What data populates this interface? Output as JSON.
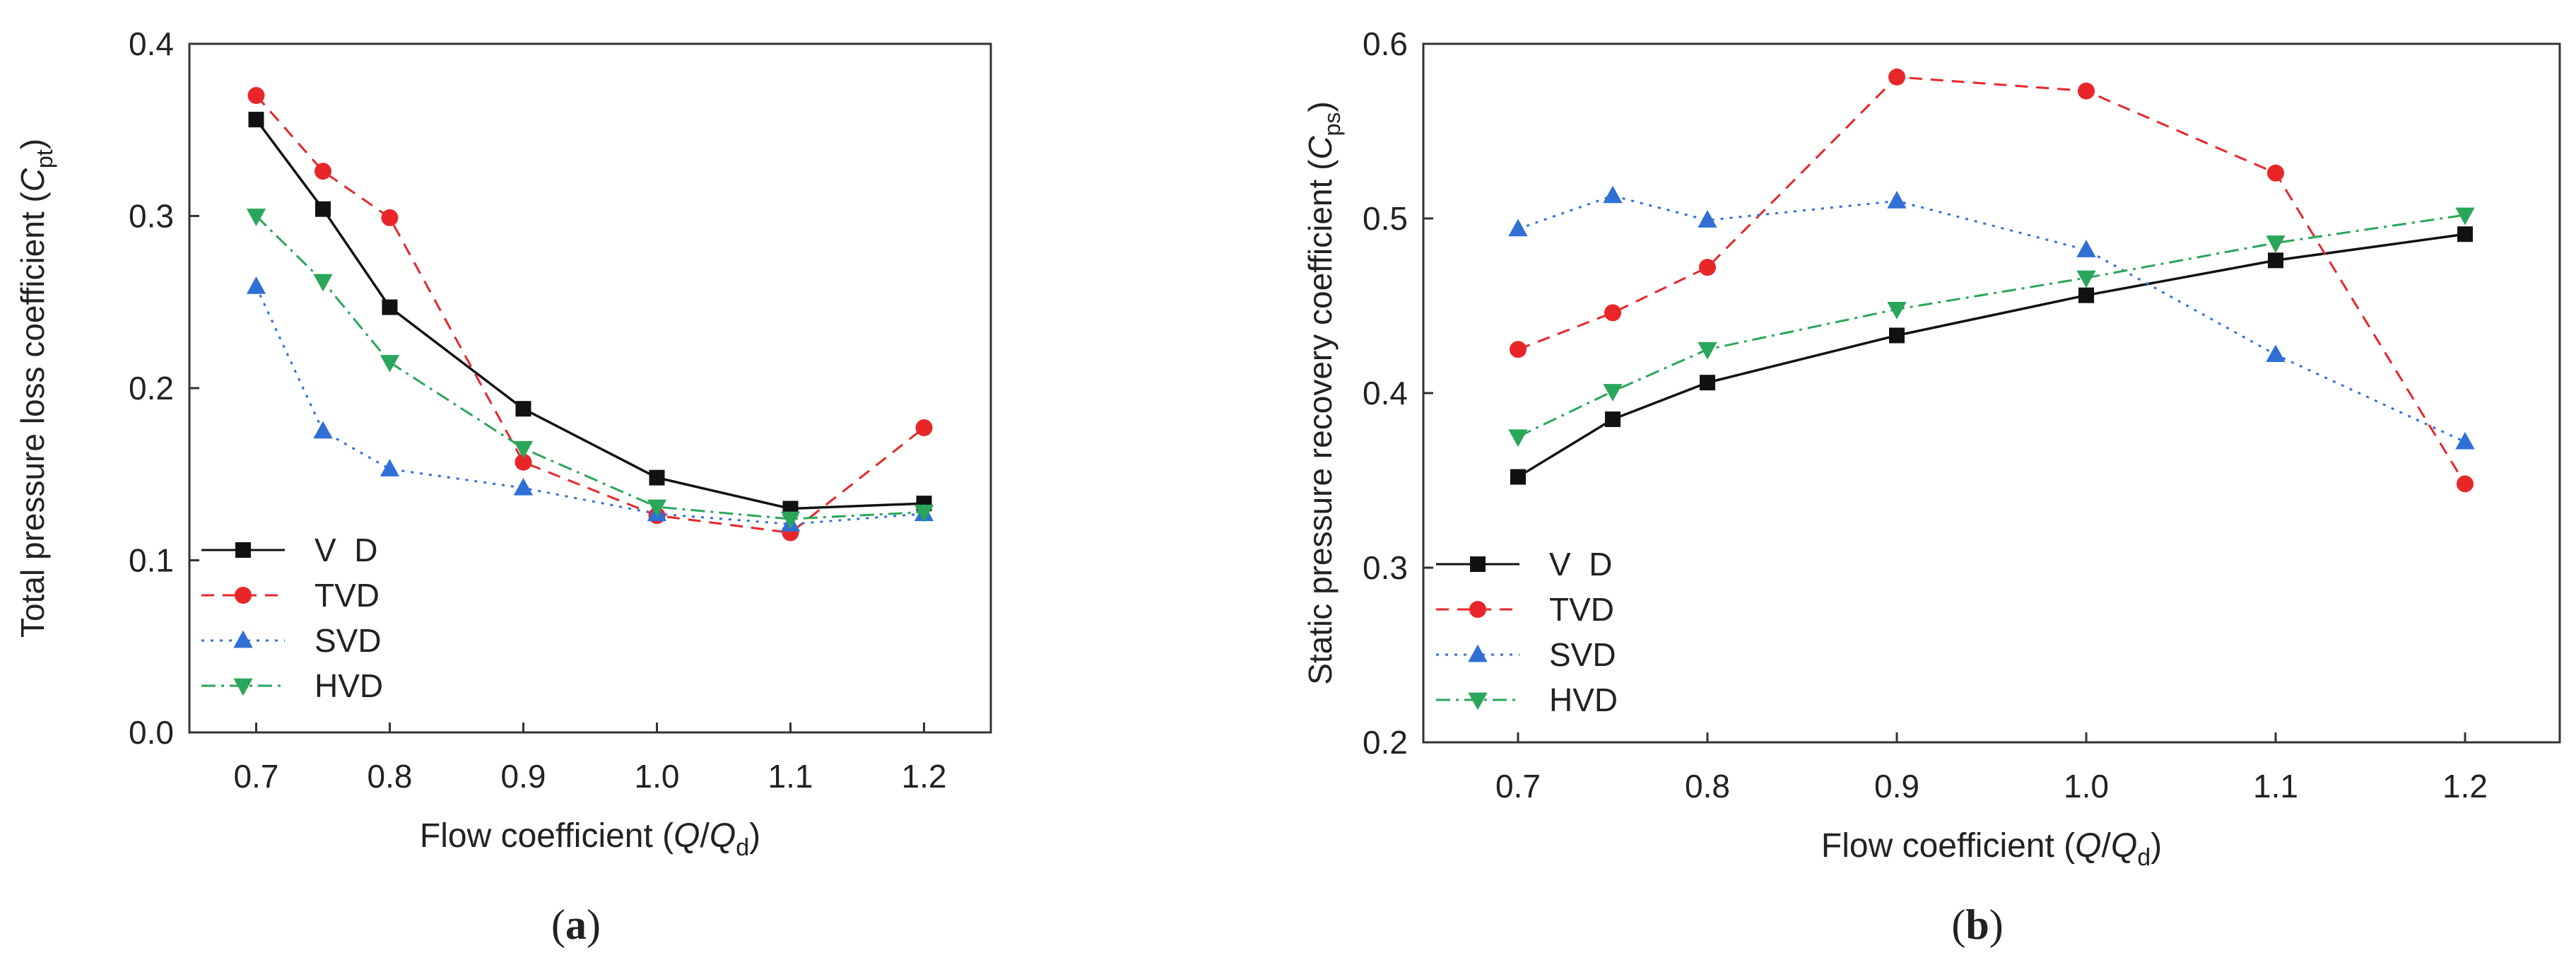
{
  "chart_data": [
    {
      "type": "line",
      "panel_label": "a",
      "ylabel": "Total pressure loss coefficient (",
      "ylabel_symbol": "C",
      "ylabel_sub": "pt",
      "ylabel_close": ")",
      "xlabel": "Flow coefficient (",
      "xlabel_sym1": "Q",
      "xlabel_slash": "/",
      "xlabel_sym2": "Q",
      "xlabel_sub": "d",
      "xlabel_close": ")",
      "xlim": [
        0.65,
        1.25
      ],
      "ylim": [
        0.0,
        0.4
      ],
      "xticks": [
        "0.7",
        "0.8",
        "0.9",
        "1.0",
        "1.1",
        "1.2"
      ],
      "yticks": [
        "0.0",
        "0.1",
        "0.2",
        "0.3",
        "0.4"
      ],
      "grid": false,
      "legend_position": "bottom-left",
      "series": [
        {
          "name": "V  D",
          "color": "#111111",
          "marker": "square",
          "dash": "solid",
          "x": [
            0.7,
            0.75,
            0.8,
            0.9,
            1.0,
            1.1,
            1.2
          ],
          "y": [
            0.356,
            0.304,
            0.247,
            0.188,
            0.148,
            0.13,
            0.133
          ]
        },
        {
          "name": "TVD",
          "color": "#e8262a",
          "marker": "circle",
          "dash": "dashed",
          "x": [
            0.7,
            0.75,
            0.8,
            0.9,
            1.0,
            1.1,
            1.2
          ],
          "y": [
            0.37,
            0.326,
            0.299,
            0.157,
            0.126,
            0.116,
            0.177
          ]
        },
        {
          "name": "SVD",
          "color": "#2f6fd6",
          "marker": "triangle-up",
          "dash": "dotted",
          "x": [
            0.7,
            0.75,
            0.8,
            0.9,
            1.0,
            1.1,
            1.2
          ],
          "y": [
            0.259,
            0.175,
            0.153,
            0.142,
            0.127,
            0.121,
            0.127
          ]
        },
        {
          "name": "HVD",
          "color": "#2aa65a",
          "marker": "triangle-down",
          "dash": "dashdot",
          "x": [
            0.7,
            0.75,
            0.8,
            0.9,
            1.0,
            1.1,
            1.2
          ],
          "y": [
            0.3,
            0.262,
            0.215,
            0.165,
            0.131,
            0.124,
            0.128
          ]
        }
      ]
    },
    {
      "type": "line",
      "panel_label": "b",
      "ylabel": "Static pressure recovery coefficient (",
      "ylabel_symbol": "C",
      "ylabel_sub": "ps",
      "ylabel_close": ")",
      "xlabel": "Flow coefficient (",
      "xlabel_sym1": "Q",
      "xlabel_slash": "/",
      "xlabel_sym2": "Q",
      "xlabel_sub": "d",
      "xlabel_close": ")",
      "xlim": [
        0.65,
        1.25
      ],
      "ylim": [
        0.2,
        0.6
      ],
      "xticks": [
        "0.7",
        "0.8",
        "0.9",
        "1.0",
        "1.1",
        "1.2"
      ],
      "yticks": [
        "0.2",
        "0.3",
        "0.4",
        "0.5",
        "0.6"
      ],
      "grid": false,
      "legend_position": "bottom-left",
      "series": [
        {
          "name": "V  D",
          "color": "#111111",
          "marker": "square",
          "dash": "solid",
          "x": [
            0.7,
            0.75,
            0.8,
            0.9,
            1.0,
            1.1,
            1.2
          ],
          "y": [
            0.352,
            0.385,
            0.406,
            0.433,
            0.456,
            0.476,
            0.491
          ]
        },
        {
          "name": "TVD",
          "color": "#e8262a",
          "marker": "circle",
          "dash": "dashed",
          "x": [
            0.7,
            0.75,
            0.8,
            0.9,
            1.0,
            1.1,
            1.2
          ],
          "y": [
            0.425,
            0.446,
            0.472,
            0.581,
            0.573,
            0.526,
            0.348
          ]
        },
        {
          "name": "SVD",
          "color": "#2f6fd6",
          "marker": "triangle-up",
          "dash": "dotted",
          "x": [
            0.7,
            0.75,
            0.8,
            0.9,
            1.0,
            1.1,
            1.2
          ],
          "y": [
            0.494,
            0.513,
            0.499,
            0.51,
            0.482,
            0.422,
            0.372
          ]
        },
        {
          "name": "HVD",
          "color": "#2aa65a",
          "marker": "triangle-down",
          "dash": "dashdot",
          "x": [
            0.7,
            0.75,
            0.8,
            0.9,
            1.0,
            1.1,
            1.2
          ],
          "y": [
            0.375,
            0.401,
            0.425,
            0.448,
            0.466,
            0.486,
            0.502
          ]
        }
      ]
    }
  ]
}
